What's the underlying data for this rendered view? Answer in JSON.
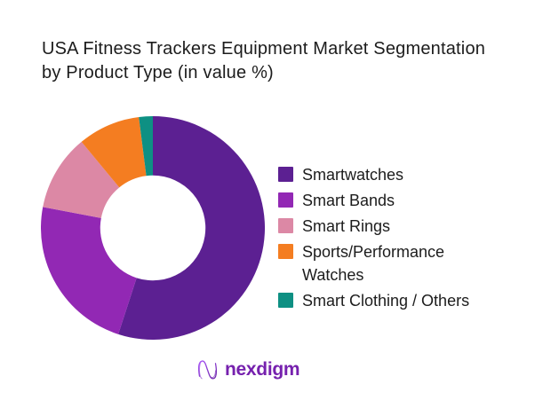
{
  "title": {
    "line1": "USA Fitness Trackers Equipment Market Segmentation",
    "line2": "by Product Type (in value %)",
    "color": "#1c1c1c"
  },
  "chart_data": {
    "type": "pie",
    "variant": "donut",
    "title": "USA Fitness Trackers Equipment Market Segmentation by Product Type (in value %)",
    "unit": "value %",
    "start_angle_deg": 0,
    "direction": "clockwise",
    "inner_radius_ratio": 0.47,
    "legend_position": "right",
    "data_labels_shown": false,
    "categories": [
      "Smartwatches",
      "Smart Bands",
      "Smart Rings",
      "Sports/Performance Watches",
      "Smart Clothing / Others"
    ],
    "values": [
      55,
      23,
      11,
      9,
      2
    ],
    "colors": [
      "#5C2092",
      "#9228B4",
      "#DC88A5",
      "#F47D21",
      "#0E9083"
    ]
  },
  "logo": {
    "text": "nexdigm",
    "text_color": "#7621AE",
    "mark_gradient_start": "#A855F7",
    "mark_gradient_end": "#6B21A8",
    "icon": "nexdigm-wave-n-icon"
  }
}
